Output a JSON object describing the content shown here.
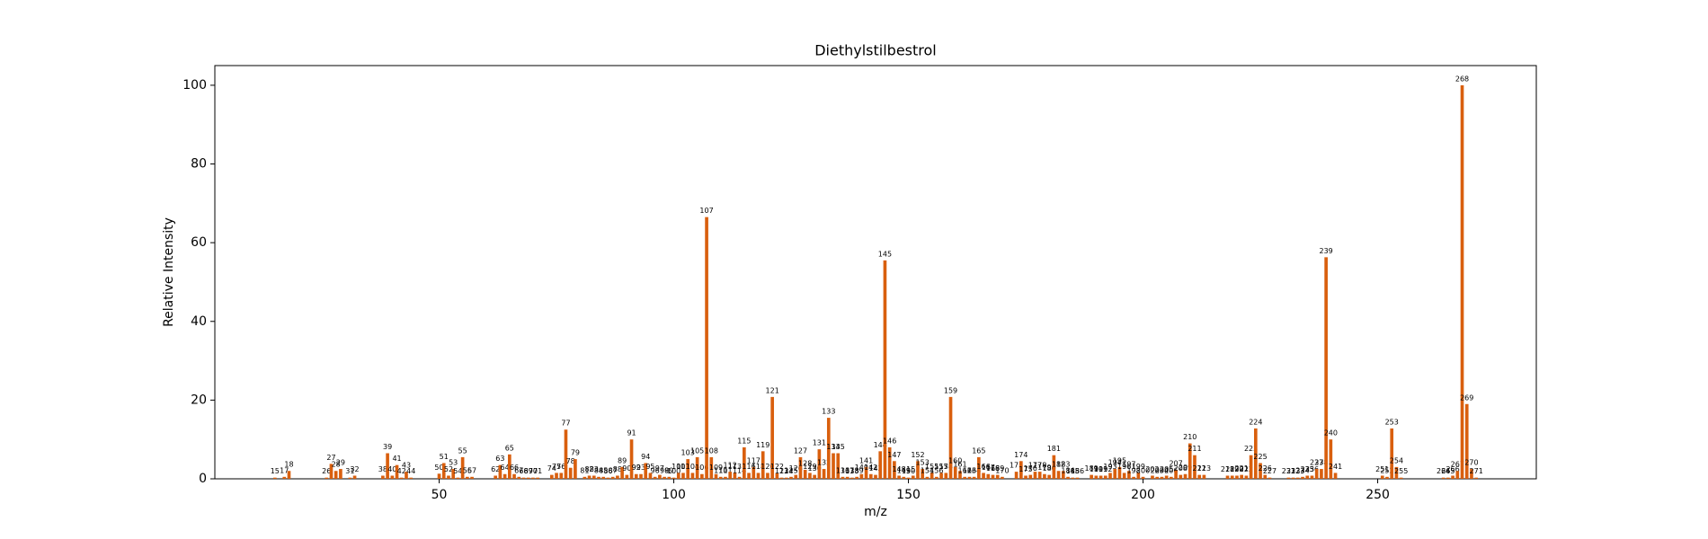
{
  "chart_data": {
    "type": "bar",
    "title": "Diethylstilbestrol",
    "xlabel": "m/z",
    "ylabel": "Relative Intensity",
    "color": "#d95f0e",
    "xlim": [
      2.2,
      283.8
    ],
    "xticks": [
      50,
      100,
      150,
      200,
      250
    ],
    "ylim": [
      0,
      105
    ],
    "yticks": [
      0,
      20,
      40,
      60,
      80,
      100
    ],
    "x": [
      15,
      17,
      18,
      26,
      27,
      28,
      29,
      31,
      32,
      38,
      39,
      40,
      41,
      42,
      43,
      44,
      50,
      51,
      52,
      53,
      54,
      55,
      56,
      57,
      62,
      63,
      64,
      65,
      66,
      67,
      68,
      69,
      70,
      71,
      74,
      75,
      76,
      77,
      78,
      79,
      81,
      82,
      83,
      84,
      85,
      86,
      87,
      88,
      89,
      90,
      91,
      92,
      93,
      94,
      95,
      96,
      97,
      98,
      99,
      100,
      101,
      102,
      103,
      104,
      105,
      106,
      107,
      108,
      109,
      110,
      111,
      112,
      113,
      114,
      115,
      116,
      117,
      118,
      119,
      120,
      121,
      122,
      123,
      124,
      125,
      126,
      127,
      128,
      129,
      130,
      131,
      132,
      133,
      134,
      135,
      136,
      137,
      138,
      139,
      140,
      141,
      142,
      143,
      144,
      145,
      146,
      147,
      148,
      149,
      150,
      151,
      152,
      153,
      154,
      155,
      156,
      157,
      158,
      159,
      160,
      161,
      162,
      163,
      164,
      165,
      166,
      167,
      168,
      169,
      170,
      173,
      174,
      175,
      176,
      177,
      178,
      179,
      180,
      181,
      182,
      183,
      184,
      185,
      186,
      189,
      190,
      191,
      192,
      193,
      194,
      195,
      196,
      197,
      198,
      199,
      200,
      202,
      203,
      204,
      205,
      206,
      207,
      208,
      209,
      210,
      211,
      212,
      213,
      218,
      219,
      220,
      221,
      222,
      223,
      224,
      225,
      226,
      227,
      231,
      232,
      233,
      234,
      235,
      236,
      237,
      238,
      239,
      240,
      241,
      251,
      252,
      253,
      254,
      255,
      264,
      265,
      266,
      267,
      268,
      269,
      270,
      271
    ],
    "values": [
      0.3,
      0.5,
      2,
      0.3,
      3.8,
      2,
      2.5,
      0.3,
      0.8,
      0.8,
      6.5,
      0.8,
      3.5,
      0.3,
      1.8,
      0.3,
      1.3,
      4,
      0.8,
      2.5,
      0.3,
      5.5,
      0.5,
      0.5,
      0.8,
      3.5,
      1.2,
      6.2,
      1.2,
      0.5,
      0.3,
      0.3,
      0.3,
      0.3,
      1,
      1.5,
      1.5,
      12.5,
      2.8,
      5,
      0.5,
      0.8,
      0.8,
      0.5,
      0.5,
      0.3,
      0.5,
      0.8,
      3,
      1,
      10,
      1.2,
      1.2,
      4,
      1.5,
      0.5,
      1,
      0.5,
      0.5,
      0.3,
      1.5,
      1.5,
      5,
      1.5,
      5.5,
      1.2,
      66.5,
      5.5,
      1.2,
      0.5,
      0.5,
      1.8,
      1.5,
      0.5,
      8,
      1.5,
      3,
      1.5,
      7,
      1.5,
      20.8,
      1.5,
      0.3,
      0.3,
      0.5,
      1,
      5.5,
      2.3,
      1.5,
      1,
      7.5,
      2.5,
      15.5,
      6.5,
      6.5,
      0.5,
      0.5,
      0.3,
      0.5,
      1.2,
      3,
      1.2,
      1,
      7,
      55.5,
      8,
      4.5,
      0.8,
      0.5,
      0.3,
      0.8,
      4.5,
      2.5,
      0.5,
      1.5,
      0.5,
      1.5,
      1.5,
      20.8,
      3,
      2,
      0.5,
      0.5,
      0.5,
      5.5,
      1.5,
      1.2,
      1,
      1,
      0.5,
      1.8,
      4.5,
      0.8,
      1,
      1.8,
      1.8,
      1.2,
      1,
      6,
      2,
      2,
      0.5,
      0.3,
      0.3,
      1,
      0.8,
      0.8,
      0.8,
      1.5,
      2.5,
      3,
      1.5,
      2,
      0.5,
      1.5,
      0.5,
      0.8,
      0.5,
      0.5,
      0.8,
      0.5,
      2.3,
      1,
      1.2,
      9,
      6,
      1,
      1,
      0.8,
      0.8,
      0.8,
      1,
      0.8,
      6,
      12.8,
      4,
      1,
      0.3,
      0.3,
      0.3,
      0.3,
      0.5,
      0.8,
      0.8,
      2.5,
      2.5,
      56.3,
      10,
      1.5,
      0.8,
      0.5,
      12.8,
      3,
      0.3,
      0.3,
      0.3,
      0.8,
      2,
      100,
      19,
      2.5,
      0.3
    ]
  }
}
